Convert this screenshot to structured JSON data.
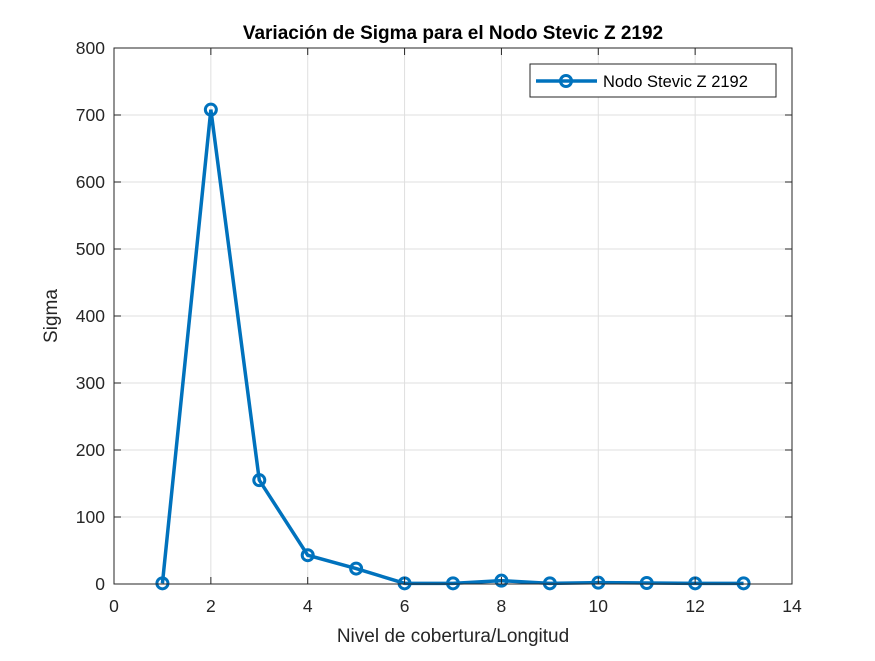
{
  "chart_data": {
    "type": "line",
    "title": "Variación de Sigma para el Nodo Stevic Z 2192",
    "xlabel": "Nivel de cobertura/Longitud",
    "ylabel": "Sigma",
    "xlim": [
      0,
      14
    ],
    "ylim": [
      0,
      800
    ],
    "xticks": [
      0,
      2,
      4,
      6,
      8,
      10,
      12,
      14
    ],
    "yticks": [
      0,
      100,
      200,
      300,
      400,
      500,
      600,
      700,
      800
    ],
    "grid": true,
    "legend_position": "top-right",
    "series": [
      {
        "name": "Nodo Stevic Z 2192",
        "color": "#0072BD",
        "marker": "circle",
        "x": [
          1,
          2,
          3,
          4,
          5,
          6,
          7,
          8,
          9,
          10,
          11,
          12,
          13
        ],
        "y": [
          1,
          708,
          155,
          43,
          23,
          1,
          1,
          5,
          1,
          2,
          1.5,
          1,
          1
        ]
      }
    ]
  }
}
